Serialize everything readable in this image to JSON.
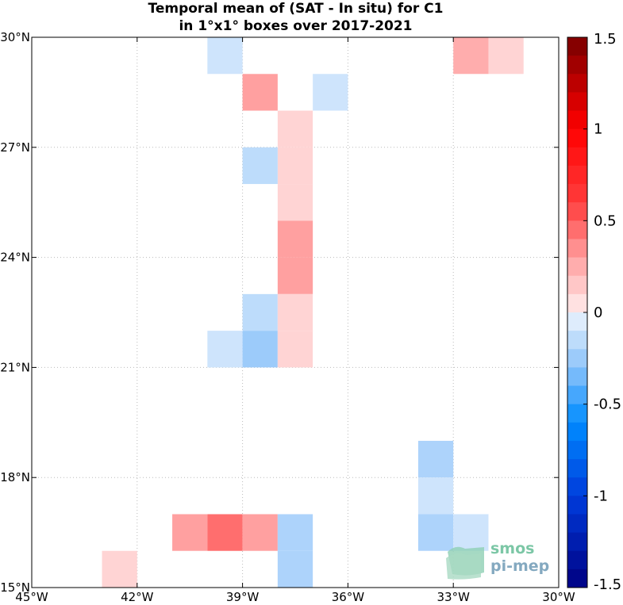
{
  "chart_data": {
    "type": "heatmap",
    "title": [
      "Temporal mean of (SAT - In situ) for C1",
      "in 1°x1° boxes over 2017-2021"
    ],
    "x_range": [
      -45,
      -30
    ],
    "y_range": [
      15,
      30
    ],
    "x_ticks": [
      {
        "value": -45,
        "label": "45°W"
      },
      {
        "value": -42,
        "label": "42°W"
      },
      {
        "value": -39,
        "label": "39°W"
      },
      {
        "value": -36,
        "label": "36°W"
      },
      {
        "value": -33,
        "label": "33°W"
      },
      {
        "value": -30,
        "label": "30°W"
      }
    ],
    "y_ticks": [
      {
        "value": 15,
        "label": "15°N"
      },
      {
        "value": 18,
        "label": "18°N"
      },
      {
        "value": 21,
        "label": "21°N"
      },
      {
        "value": 24,
        "label": "24°N"
      },
      {
        "value": 27,
        "label": "27°N"
      },
      {
        "value": 30,
        "label": "30°N"
      }
    ],
    "grid": true,
    "cell_size_deg": 1,
    "cells": [
      {
        "lon": -40,
        "lat": 29,
        "value": -0.1
      },
      {
        "lon": -33,
        "lat": 29,
        "value": 0.25
      },
      {
        "lon": -32,
        "lat": 29,
        "value": 0.1
      },
      {
        "lon": -39,
        "lat": 28,
        "value": 0.3
      },
      {
        "lon": -37,
        "lat": 28,
        "value": -0.1
      },
      {
        "lon": -38,
        "lat": 27,
        "value": 0.1
      },
      {
        "lon": -38,
        "lat": 26,
        "value": 0.1
      },
      {
        "lon": -39,
        "lat": 26,
        "value": -0.15
      },
      {
        "lon": -38,
        "lat": 25,
        "value": 0.1
      },
      {
        "lon": -38,
        "lat": 24,
        "value": 0.3
      },
      {
        "lon": -38,
        "lat": 23,
        "value": 0.3
      },
      {
        "lon": -39,
        "lat": 22,
        "value": -0.15
      },
      {
        "lon": -38,
        "lat": 22,
        "value": 0.1
      },
      {
        "lon": -40,
        "lat": 21,
        "value": -0.1
      },
      {
        "lon": -39,
        "lat": 21,
        "value": -0.25
      },
      {
        "lon": -38,
        "lat": 21,
        "value": 0.1
      },
      {
        "lon": -34,
        "lat": 18,
        "value": -0.2
      },
      {
        "lon": -34,
        "lat": 17,
        "value": -0.1
      },
      {
        "lon": -41,
        "lat": 16,
        "value": 0.3
      },
      {
        "lon": -40,
        "lat": 16,
        "value": 0.45
      },
      {
        "lon": -39,
        "lat": 16,
        "value": 0.3
      },
      {
        "lon": -38,
        "lat": 16,
        "value": -0.2
      },
      {
        "lon": -34,
        "lat": 16,
        "value": -0.2
      },
      {
        "lon": -33,
        "lat": 16,
        "value": -0.1
      },
      {
        "lon": -43,
        "lat": 15,
        "value": 0.1
      },
      {
        "lon": -38,
        "lat": 15,
        "value": -0.2
      }
    ],
    "colorbar": {
      "min": -1.5,
      "max": 1.5,
      "steps": 30,
      "tick_values": [
        1.5,
        1,
        0.5,
        0,
        -0.5,
        -1,
        -1.5
      ],
      "tick_labels": [
        "1.5",
        "1",
        "0.5",
        "0",
        "-0.5",
        "-1",
        "-1.5"
      ]
    }
  },
  "logo": {
    "line1": "smos",
    "line2": "pi-mep"
  }
}
